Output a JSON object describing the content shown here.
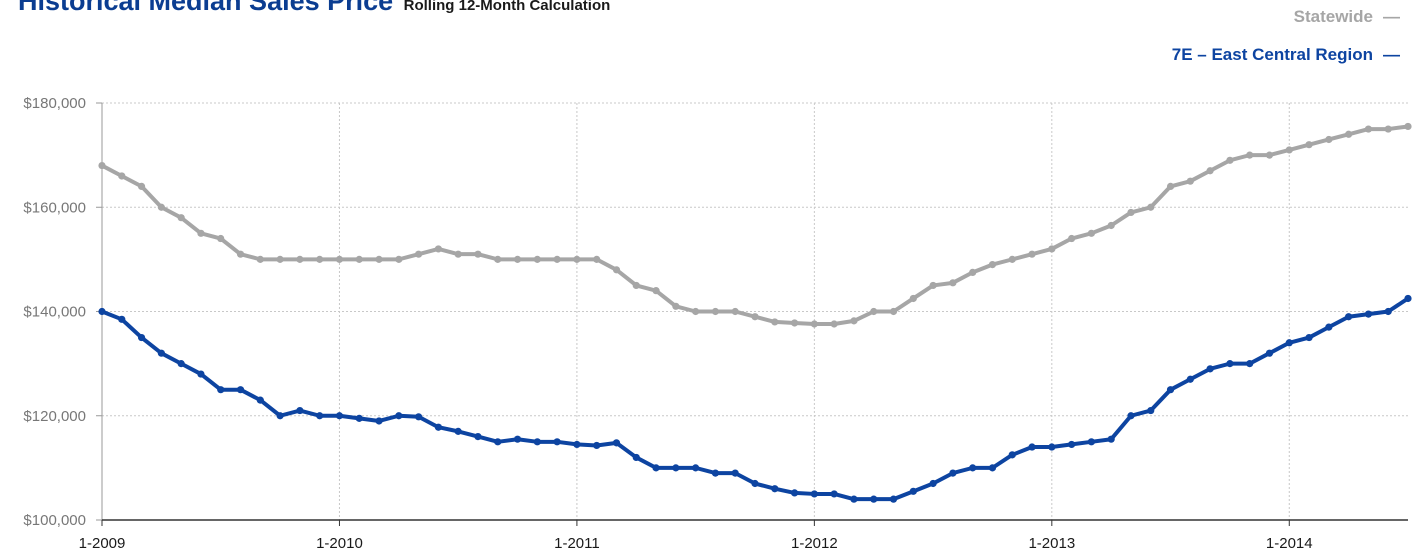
{
  "chart_data": {
    "type": "line",
    "title": "Historical Median Sales Price",
    "subtitle": "Rolling 12-Month Calculation",
    "xlabel": "",
    "ylabel": "",
    "ylim": [
      100000,
      180000
    ],
    "y_ticks": [
      {
        "value": 100000,
        "label": "$100,000"
      },
      {
        "value": 120000,
        "label": "$120,000"
      },
      {
        "value": 140000,
        "label": "$140,000"
      },
      {
        "value": 160000,
        "label": "$160,000"
      },
      {
        "value": 180000,
        "label": "$180,000"
      }
    ],
    "x_ticks": [
      "1-2009",
      "1-2010",
      "1-2011",
      "1-2012",
      "1-2013",
      "1-2014"
    ],
    "x_range_months": [
      0,
      66
    ],
    "grid": true,
    "legend_position": "top-right",
    "series": [
      {
        "name": "Statewide",
        "color": "#a6a6a6",
        "values": [
          168000,
          166000,
          164000,
          160000,
          158000,
          155000,
          154000,
          151000,
          150000,
          150000,
          150000,
          150000,
          150000,
          150000,
          150000,
          150000,
          151000,
          152000,
          151000,
          151000,
          150000,
          150000,
          150000,
          150000,
          150000,
          150000,
          148000,
          145000,
          144000,
          141000,
          140000,
          140000,
          140000,
          139000,
          138000,
          137800,
          137600,
          137600,
          138200,
          140000,
          140000,
          142500,
          145000,
          145500,
          147500,
          149000,
          150000,
          151000,
          152000,
          154000,
          155000,
          156500,
          159000,
          160000,
          164000,
          165000,
          167000,
          169000,
          170000,
          170000,
          171000,
          172000,
          173000,
          174000,
          175000,
          175000,
          175500
        ]
      },
      {
        "name": "7E – East Central Region",
        "color": "#0d44a1",
        "values": [
          140000,
          138500,
          135000,
          132000,
          130000,
          128000,
          125000,
          125000,
          123000,
          120000,
          121000,
          120000,
          120000,
          119500,
          119000,
          120000,
          119800,
          117800,
          117000,
          116000,
          115000,
          115500,
          115000,
          115000,
          114500,
          114300,
          114800,
          112000,
          110000,
          110000,
          110000,
          109000,
          109000,
          107000,
          106000,
          105200,
          105000,
          105000,
          104000,
          104000,
          104000,
          105500,
          107000,
          109000,
          110000,
          110000,
          112500,
          114000,
          114000,
          114500,
          115000,
          115500,
          120000,
          121000,
          125000,
          127000,
          129000,
          130000,
          130000,
          132000,
          134000,
          135000,
          137000,
          139000,
          139500,
          140000,
          142500
        ]
      }
    ]
  }
}
